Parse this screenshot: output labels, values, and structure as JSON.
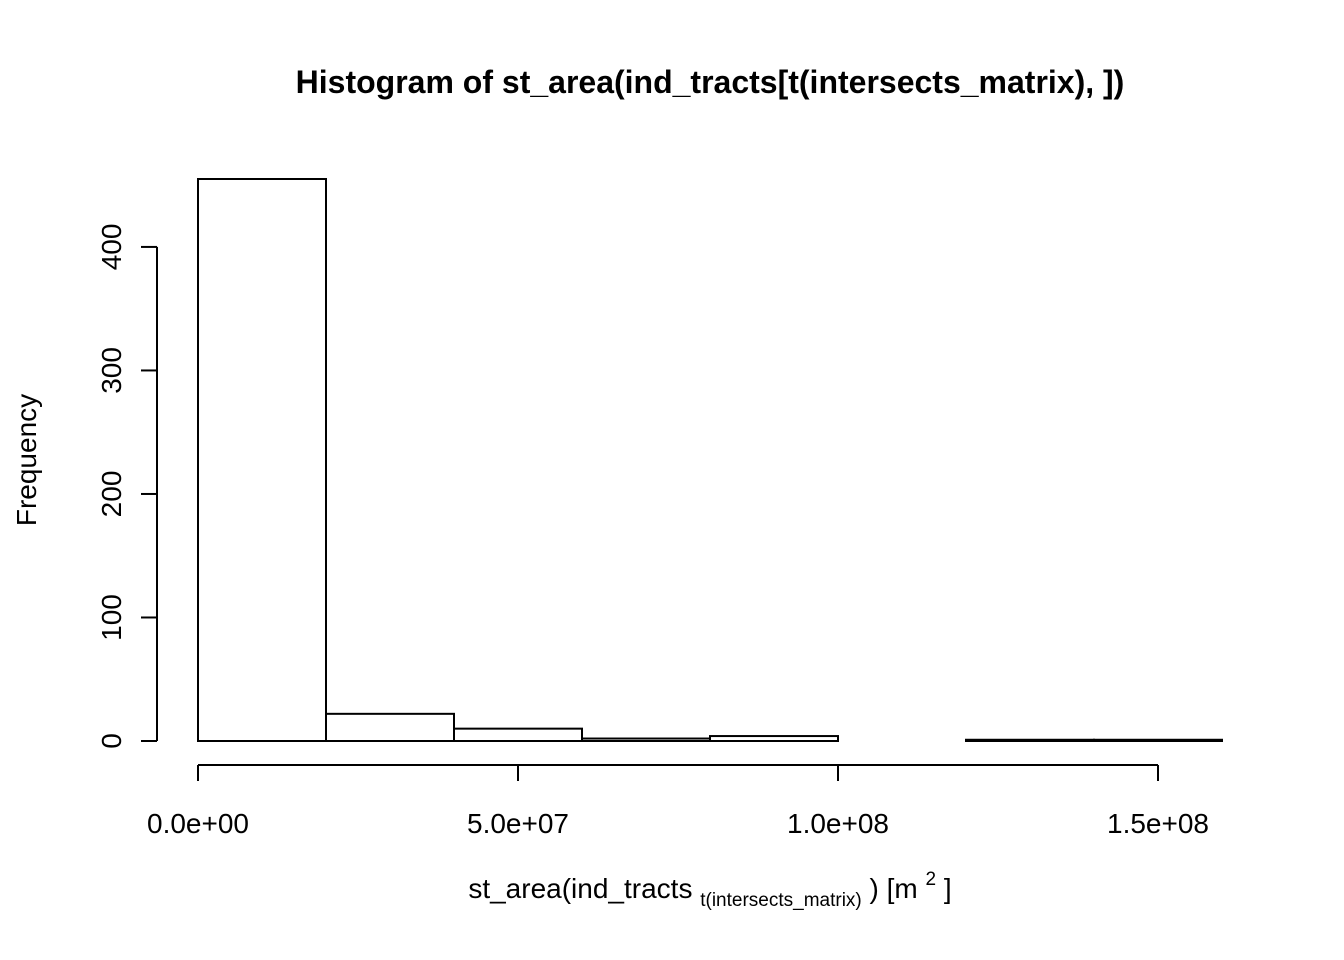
{
  "chart_data": {
    "type": "bar",
    "title": "Histogram of st_area(ind_tracts[t(intersects_matrix), ])",
    "xlabel": {
      "main": "st_area(ind_tracts",
      "subscript": "t(intersects_matrix)",
      "after_subscript": ") [m",
      "superscript": "2",
      "closing": "]"
    },
    "ylabel": "Frequency",
    "bin_edges": [
      0,
      20000000,
      40000000,
      60000000,
      80000000,
      100000000,
      120000000,
      140000000,
      160000000
    ],
    "values": [
      455,
      22,
      10,
      2,
      4,
      0,
      1,
      1
    ],
    "xlim": [
      0,
      160000000
    ],
    "ylim": [
      0,
      455
    ],
    "x_ticks": [
      0,
      50000000,
      100000000,
      150000000
    ],
    "x_tick_labels": [
      "0.0e+00",
      "5.0e+07",
      "1.0e+08",
      "1.5e+08"
    ],
    "y_ticks": [
      0,
      100,
      200,
      300,
      400
    ],
    "y_tick_labels": [
      "0",
      "100",
      "200",
      "300",
      "400"
    ],
    "grid": false,
    "legend": "none",
    "colors": {
      "bar_fill": "#ffffff",
      "bar_stroke": "#000000"
    }
  }
}
